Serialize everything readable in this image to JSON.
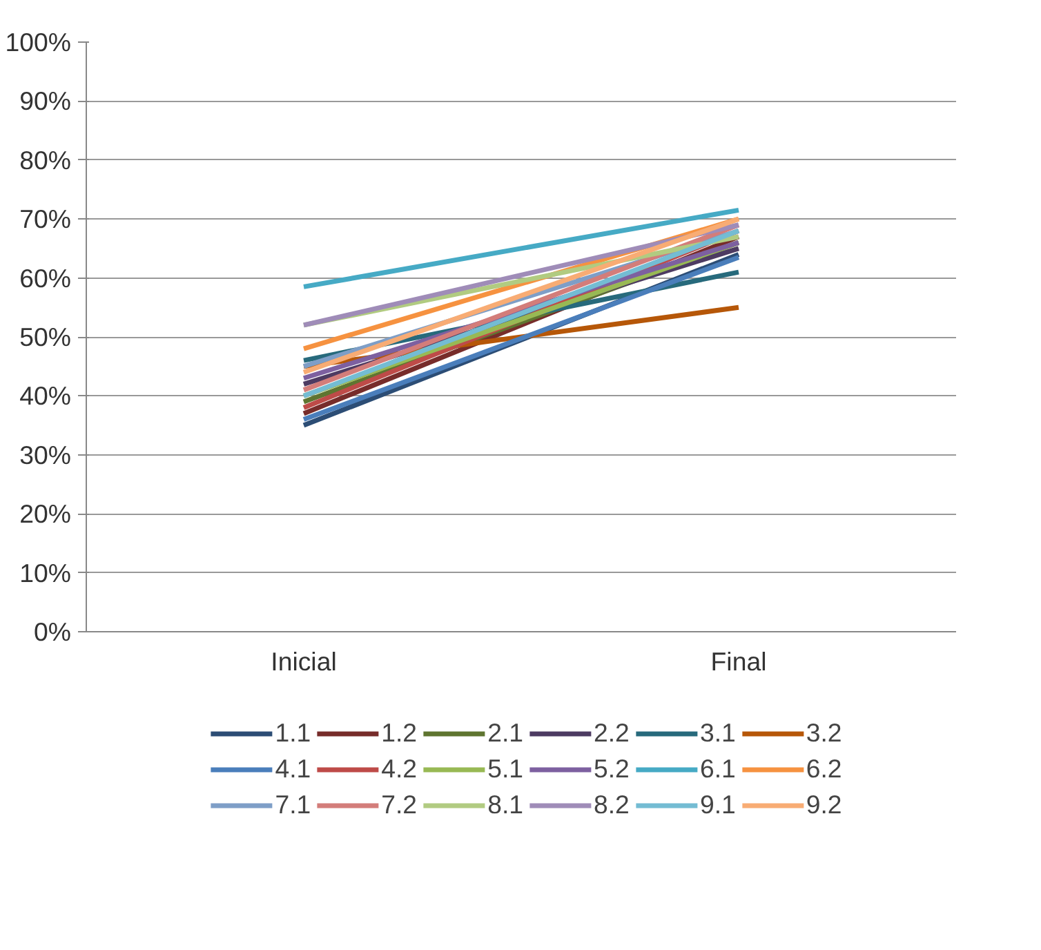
{
  "chart_data": {
    "type": "line",
    "categories": [
      "Inicial",
      "Final"
    ],
    "ylim": [
      0,
      100
    ],
    "yticks": [
      {
        "value": 0,
        "label": "0%"
      },
      {
        "value": 10,
        "label": "10%"
      },
      {
        "value": 20,
        "label": "20%"
      },
      {
        "value": 30,
        "label": "30%"
      },
      {
        "value": 40,
        "label": "40%"
      },
      {
        "value": 50,
        "label": "50%"
      },
      {
        "value": 60,
        "label": "60%"
      },
      {
        "value": 70,
        "label": "70%"
      },
      {
        "value": 80,
        "label": "80%"
      },
      {
        "value": 90,
        "label": "90%"
      },
      {
        "value": 100,
        "label": "100%"
      }
    ],
    "grid": "y",
    "legend": "bottom",
    "marker": "none",
    "line_style": "solid",
    "series": [
      {
        "name": "1.1",
        "color": "#2c4d75",
        "values": [
          35,
          64
        ]
      },
      {
        "name": "1.2",
        "color": "#772c2a",
        "values": [
          37,
          67
        ]
      },
      {
        "name": "2.1",
        "color": "#5f7530",
        "values": [
          39,
          66
        ]
      },
      {
        "name": "2.2",
        "color": "#4d3b62",
        "values": [
          42,
          65
        ]
      },
      {
        "name": "3.1",
        "color": "#276a7c",
        "values": [
          46,
          61
        ]
      },
      {
        "name": "3.2",
        "color": "#b65708",
        "values": [
          45,
          55
        ]
      },
      {
        "name": "4.1",
        "color": "#4a7ebb",
        "values": [
          36,
          63.5
        ]
      },
      {
        "name": "4.2",
        "color": "#be4b48",
        "values": [
          38,
          68
        ]
      },
      {
        "name": "5.1",
        "color": "#98b954",
        "values": [
          40,
          66
        ]
      },
      {
        "name": "5.2",
        "color": "#7d60a0",
        "values": [
          43,
          66
        ]
      },
      {
        "name": "6.1",
        "color": "#46aac5",
        "values": [
          58.5,
          71.5
        ]
      },
      {
        "name": "6.2",
        "color": "#f69240",
        "values": [
          48,
          70
        ]
      },
      {
        "name": "7.1",
        "color": "#7e9ec7",
        "values": [
          45,
          68
        ]
      },
      {
        "name": "7.2",
        "color": "#d37d7a",
        "values": [
          41,
          69
        ]
      },
      {
        "name": "8.1",
        "color": "#b1cb81",
        "values": [
          52,
          67
        ]
      },
      {
        "name": "8.2",
        "color": "#9f8cb8",
        "values": [
          52,
          69
        ]
      },
      {
        "name": "9.1",
        "color": "#74bcd3",
        "values": [
          40,
          68
        ]
      },
      {
        "name": "9.2",
        "color": "#f8ac74",
        "values": [
          44,
          70
        ]
      }
    ]
  }
}
